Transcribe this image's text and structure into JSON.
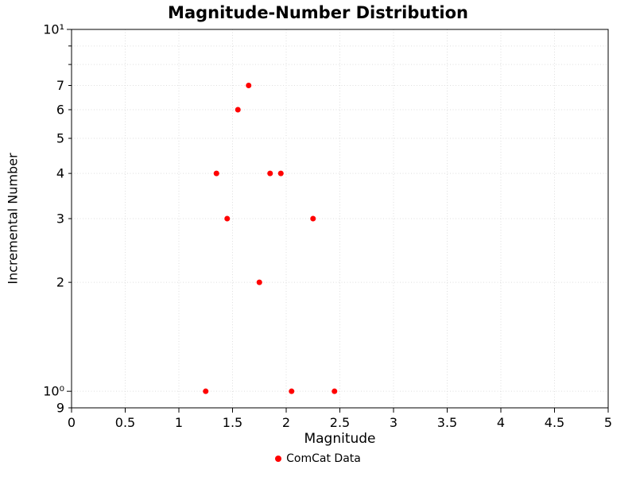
{
  "chart_data": {
    "type": "scatter",
    "title": "Magnitude-Number Distribution",
    "xlabel": "Magnitude",
    "ylabel": "Incremental Number",
    "series": [
      {
        "name": "ComCat Data",
        "color": "#ff0000",
        "marker": "circle",
        "x": [
          1.25,
          1.35,
          1.45,
          1.55,
          1.65,
          1.75,
          1.85,
          1.95,
          2.05,
          2.25,
          2.45
        ],
        "y": [
          1,
          4,
          3,
          6,
          7,
          2,
          4,
          4,
          1,
          3,
          1
        ]
      }
    ],
    "xscale": "linear",
    "xlim": [
      0,
      5
    ],
    "x_ticks": [
      {
        "value": 0,
        "label": "0"
      },
      {
        "value": 0.5,
        "label": "0.5"
      },
      {
        "value": 1,
        "label": "1"
      },
      {
        "value": 1.5,
        "label": "1.5"
      },
      {
        "value": 2,
        "label": "2"
      },
      {
        "value": 2.5,
        "label": "2.5"
      },
      {
        "value": 3,
        "label": "3"
      },
      {
        "value": 3.5,
        "label": "3.5"
      },
      {
        "value": 4,
        "label": "4"
      },
      {
        "value": 4.5,
        "label": "4.5"
      },
      {
        "value": 5,
        "label": "5"
      }
    ],
    "yscale": "log",
    "ylim": [
      0.9,
      10
    ],
    "y_ticks": [
      {
        "value": 10,
        "label": "10¹",
        "major": true
      },
      {
        "value": 7,
        "label": "7",
        "major": false
      },
      {
        "value": 6,
        "label": "6",
        "major": false
      },
      {
        "value": 5,
        "label": "5",
        "major": false
      },
      {
        "value": 4,
        "label": "4",
        "major": false
      },
      {
        "value": 3,
        "label": "3",
        "major": false
      },
      {
        "value": 2,
        "label": "2",
        "major": false
      },
      {
        "value": 1,
        "label": "10⁰",
        "major": true
      },
      {
        "value": 0.9,
        "label": "9",
        "major": false
      }
    ],
    "y_grid_values": [
      0.9,
      1,
      2,
      3,
      4,
      5,
      6,
      7,
      8,
      9,
      10
    ],
    "grid": true,
    "legend_position": "lower center outside"
  }
}
